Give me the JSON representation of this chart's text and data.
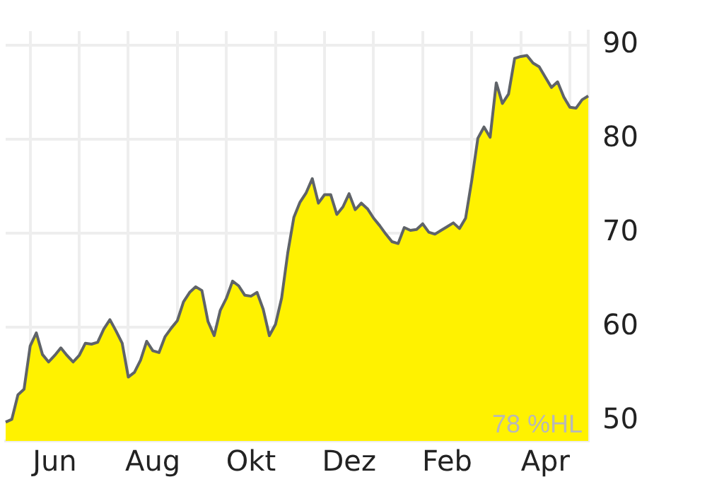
{
  "chart_data": {
    "type": "area",
    "annotations": [
      "78 %HL"
    ],
    "categories": [
      null,
      null,
      null,
      null,
      null,
      null,
      null,
      null,
      "Jun",
      null,
      null,
      null,
      null,
      null,
      null,
      null,
      null,
      null,
      null,
      null,
      null,
      null,
      null,
      null,
      "Aug",
      null,
      null,
      null,
      null,
      null,
      null,
      null,
      null,
      null,
      null,
      null,
      null,
      null,
      null,
      null,
      "Okt",
      null,
      null,
      null,
      null,
      null,
      null,
      null,
      null,
      null,
      null,
      null,
      null,
      null,
      null,
      null,
      "Dez",
      null,
      null,
      null,
      null,
      null,
      null,
      null,
      null,
      null,
      null,
      null,
      null,
      null,
      null,
      null,
      "Feb",
      null,
      null,
      null,
      null,
      null,
      null,
      null,
      null,
      null,
      null,
      null,
      null,
      null,
      null,
      null,
      "Apr",
      null,
      null,
      null,
      null,
      null,
      null,
      null
    ],
    "series": [
      {
        "color": "#fff200",
        "values": [
          49.9,
          50.2,
          52.8,
          53.4,
          58.0,
          59.4,
          57.1,
          56.3,
          57.0,
          57.8,
          57.0,
          56.3,
          57.0,
          58.3,
          58.2,
          58.4,
          59.8,
          60.8,
          59.6,
          58.3,
          54.7,
          55.2,
          56.5,
          58.5,
          57.5,
          57.3,
          59.0,
          59.9,
          60.7,
          62.7,
          63.7,
          64.3,
          63.9,
          60.6,
          59.1,
          61.8,
          63.1,
          64.9,
          64.4,
          63.4,
          63.3,
          63.7,
          61.9,
          59.1,
          60.3,
          63.1,
          67.9,
          71.7,
          73.3,
          74.3,
          75.8,
          73.2,
          74.1,
          74.1,
          72.0,
          72.8,
          74.2,
          72.5,
          73.2,
          72.6,
          71.6,
          70.8,
          69.9,
          69.1,
          68.9,
          70.6,
          70.3,
          70.4,
          71.0,
          70.1,
          69.9,
          70.3,
          70.7,
          71.1,
          70.5,
          71.6,
          75.6,
          80.1,
          81.3,
          80.2,
          86.0,
          83.8,
          84.8,
          88.6,
          88.8,
          88.9,
          88.1,
          87.7,
          86.6,
          85.5,
          86.1,
          84.5,
          83.4,
          83.3,
          84.2,
          84.6
        ]
      }
    ],
    "ylim": [
      47.9,
      91.5
    ],
    "yticks": [
      50,
      60,
      70,
      80,
      90
    ],
    "grid": true,
    "legend": false
  }
}
